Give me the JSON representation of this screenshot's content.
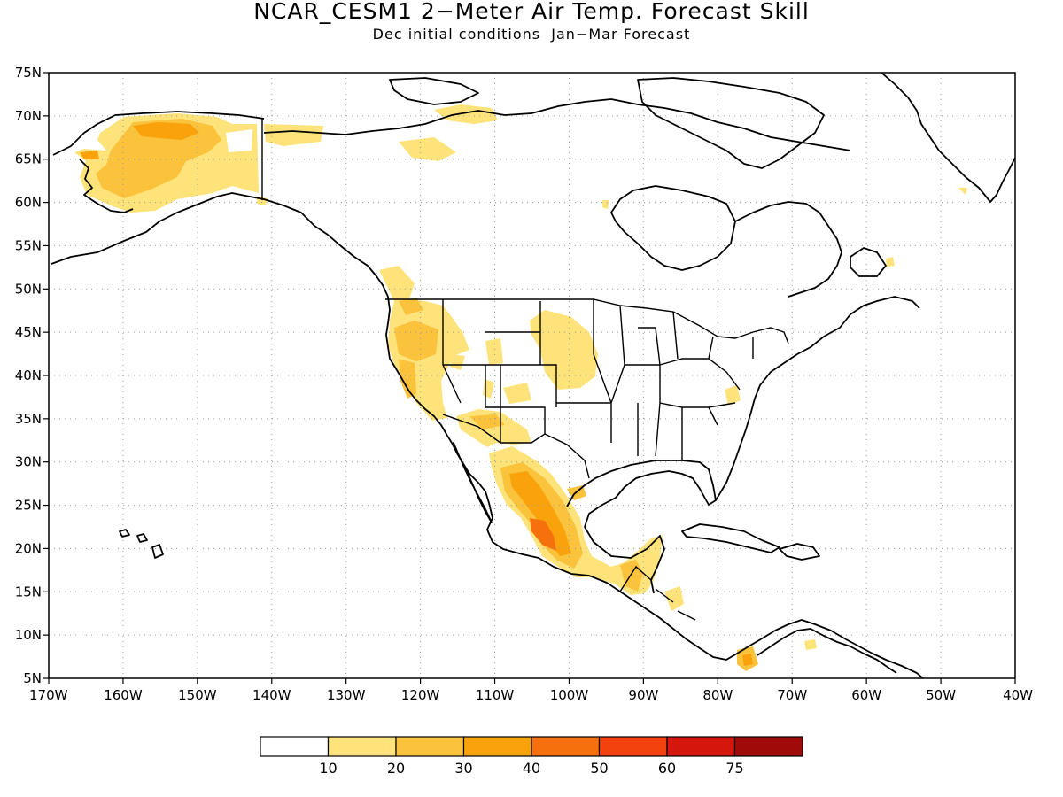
{
  "map": {
    "title": "NCAR_CESM1 2−Meter Air Temp. Forecast Skill",
    "subtitle": "Dec initial conditions  Jan−Mar Forecast",
    "projection": "equirectangular",
    "lon_range": [
      -170,
      -40
    ],
    "lat_range": [
      5,
      75
    ],
    "grid": "dotted",
    "lat_labels": [
      "5N",
      "10N",
      "15N",
      "20N",
      "25N",
      "30N",
      "35N",
      "40N",
      "45N",
      "50N",
      "55N",
      "60N",
      "65N",
      "70N",
      "75N"
    ],
    "lon_labels": [
      "170W",
      "160W",
      "150W",
      "140W",
      "130W",
      "120W",
      "110W",
      "100W",
      "90W",
      "80W",
      "70W",
      "60W",
      "50W",
      "40W"
    ]
  },
  "colorbar": {
    "labels": [
      "10",
      "20",
      "30",
      "40",
      "50",
      "60",
      "75"
    ],
    "colors": [
      "#ffffff",
      "#fde37a",
      "#fbc23c",
      "#f9a20c",
      "#f7700e",
      "#f4420f",
      "#d4160d",
      "#a00a08"
    ]
  },
  "colors": {
    "level_10": "#fde37a",
    "level_20": "#fbc23c",
    "level_30": "#f9a20c",
    "level_40": "#f7700e",
    "coast": "#000000"
  }
}
